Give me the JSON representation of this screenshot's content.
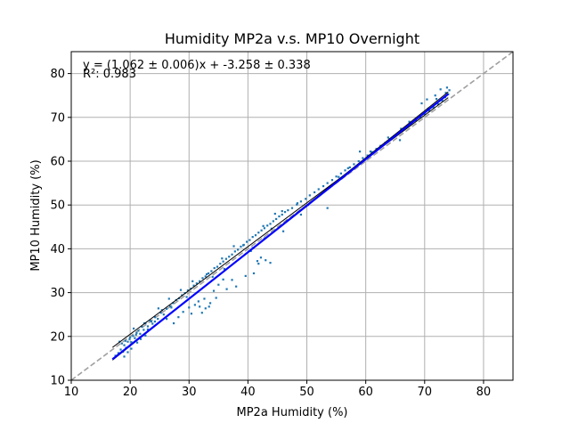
{
  "chart_data": {
    "type": "scatter",
    "title": "Humidity MP2a v.s. MP10 Overnight",
    "xlabel": "MP2a Humidity (%)",
    "ylabel": "MP10 Humidity (%)",
    "xlim": [
      10,
      85
    ],
    "ylim": [
      10,
      85
    ],
    "xticks": [
      10,
      20,
      30,
      40,
      50,
      60,
      70,
      80
    ],
    "yticks": [
      10,
      20,
      30,
      40,
      50,
      60,
      70,
      80
    ],
    "grid": true,
    "annotation": {
      "equation": "y = (1.062 ± 0.006)x + -3.258 ± 0.338",
      "r2": "R²: 0.983"
    },
    "fit": {
      "slope": 1.062,
      "intercept": -3.258,
      "x_range": [
        17,
        74
      ],
      "color": "#0000ff"
    },
    "fit_bounds": {
      "upper_at_x17": 17.5,
      "upper_at_x74": 74.5,
      "lower_at_x17": 14.6,
      "lower_at_x74": 75.8,
      "color": "#000000"
    },
    "identity_line": {
      "x": [
        10,
        85
      ],
      "color": "#a0a0a0",
      "style": "dashed"
    },
    "scatter_color": "#1f77b4",
    "points": [
      [
        17.5,
        15.6
      ],
      [
        18.0,
        16.2
      ],
      [
        18.4,
        17.0
      ],
      [
        18.8,
        16.5
      ],
      [
        19.0,
        18.0
      ],
      [
        19.3,
        17.4
      ],
      [
        19.6,
        18.8
      ],
      [
        19.9,
        19.4
      ],
      [
        20.2,
        18.7
      ],
      [
        20.5,
        20.1
      ],
      [
        20.8,
        19.6
      ],
      [
        21.1,
        20.8
      ],
      [
        21.4,
        21.3
      ],
      [
        21.7,
        20.6
      ],
      [
        22.0,
        22.2
      ],
      [
        22.3,
        21.5
      ],
      [
        22.6,
        23.0
      ],
      [
        23.0,
        22.3
      ],
      [
        23.4,
        23.6
      ],
      [
        23.8,
        22.9
      ],
      [
        24.2,
        24.4
      ],
      [
        24.7,
        24.0
      ],
      [
        25.2,
        25.4
      ],
      [
        25.7,
        25.0
      ],
      [
        26.2,
        26.3
      ],
      [
        26.8,
        26.9
      ],
      [
        27.3,
        27.6
      ],
      [
        27.8,
        28.3
      ],
      [
        28.3,
        28.7
      ],
      [
        28.8,
        29.4
      ],
      [
        29.3,
        29.9
      ],
      [
        29.8,
        30.5
      ],
      [
        30.3,
        30.9
      ],
      [
        30.8,
        31.6
      ],
      [
        31.3,
        32.1
      ],
      [
        31.8,
        32.6
      ],
      [
        32.3,
        33.3
      ],
      [
        32.8,
        33.7
      ],
      [
        33.3,
        34.4
      ],
      [
        33.8,
        34.9
      ],
      [
        34.3,
        35.6
      ],
      [
        34.8,
        35.9
      ],
      [
        35.3,
        36.6
      ],
      [
        35.8,
        37.1
      ],
      [
        36.3,
        37.7
      ],
      [
        36.8,
        38.2
      ],
      [
        37.3,
        38.7
      ],
      [
        37.8,
        39.4
      ],
      [
        38.3,
        39.8
      ],
      [
        38.8,
        40.5
      ],
      [
        39.3,
        40.9
      ],
      [
        39.8,
        41.6
      ],
      [
        40.3,
        42.0
      ],
      [
        40.8,
        42.7
      ],
      [
        41.3,
        43.1
      ],
      [
        41.8,
        43.7
      ],
      [
        42.3,
        44.2
      ],
      [
        42.8,
        44.7
      ],
      [
        43.3,
        45.3
      ],
      [
        43.8,
        45.7
      ],
      [
        44.3,
        46.3
      ],
      [
        44.8,
        46.8
      ],
      [
        45.3,
        47.4
      ],
      [
        45.8,
        47.8
      ],
      [
        46.3,
        48.4
      ],
      [
        46.8,
        48.8
      ],
      [
        47.5,
        49.3
      ],
      [
        48.3,
        50.1
      ],
      [
        49.0,
        50.8
      ],
      [
        49.8,
        51.4
      ],
      [
        50.5,
        52.2
      ],
      [
        51.3,
        52.9
      ],
      [
        52.0,
        53.6
      ],
      [
        52.8,
        54.3
      ],
      [
        53.5,
        55.0
      ],
      [
        54.3,
        55.7
      ],
      [
        55.0,
        56.5
      ],
      [
        55.8,
        57.2
      ],
      [
        56.5,
        57.9
      ],
      [
        57.3,
        58.6
      ],
      [
        58.0,
        59.3
      ],
      [
        58.8,
        60.0
      ],
      [
        59.5,
        60.7
      ],
      [
        60.3,
        61.3
      ],
      [
        61.0,
        62.1
      ],
      [
        61.8,
        62.8
      ],
      [
        62.5,
        63.5
      ],
      [
        63.3,
        64.2
      ],
      [
        64.0,
        65.0
      ],
      [
        64.8,
        65.7
      ],
      [
        65.5,
        66.4
      ],
      [
        66.3,
        67.1
      ],
      [
        67.0,
        67.9
      ],
      [
        67.8,
        68.6
      ],
      [
        68.5,
        69.3
      ],
      [
        69.3,
        70.0
      ],
      [
        70.0,
        70.8
      ],
      [
        70.8,
        71.5
      ],
      [
        71.5,
        72.3
      ],
      [
        72.3,
        73.0
      ],
      [
        73.0,
        73.8
      ],
      [
        73.5,
        74.6
      ],
      [
        74.0,
        75.3
      ],
      [
        74.2,
        76.2
      ],
      [
        73.8,
        76.8
      ],
      [
        72.7,
        76.4
      ],
      [
        71.8,
        75.0
      ],
      [
        70.4,
        74.1
      ],
      [
        69.5,
        73.2
      ],
      [
        66.0,
        67.4
      ],
      [
        65.8,
        64.8
      ],
      [
        59.0,
        62.2
      ],
      [
        53.5,
        49.3
      ],
      [
        49.0,
        47.8
      ],
      [
        46.0,
        44.0
      ],
      [
        43.0,
        37.4
      ],
      [
        43.8,
        36.8
      ],
      [
        42.2,
        38.0
      ],
      [
        41.6,
        37.2
      ],
      [
        41.0,
        34.4
      ],
      [
        40.5,
        39.5
      ],
      [
        42.6,
        45.2
      ],
      [
        44.6,
        48.0
      ],
      [
        45.8,
        48.6
      ],
      [
        37.3,
        32.9
      ],
      [
        35.8,
        33.0
      ],
      [
        35.0,
        31.8
      ],
      [
        34.2,
        30.4
      ],
      [
        33.6,
        27.6
      ],
      [
        32.8,
        26.4
      ],
      [
        32.2,
        25.4
      ],
      [
        31.8,
        26.8
      ],
      [
        31.0,
        27.2
      ],
      [
        30.4,
        25.2
      ],
      [
        29.0,
        25.6
      ],
      [
        28.2,
        24.4
      ],
      [
        27.4,
        23.0
      ],
      [
        26.2,
        24.0
      ],
      [
        25.4,
        26.0
      ],
      [
        24.2,
        23.4
      ],
      [
        23.0,
        21.6
      ],
      [
        22.6,
        20.2
      ],
      [
        21.8,
        19.4
      ],
      [
        21.2,
        18.6
      ],
      [
        20.2,
        17.2
      ],
      [
        19.6,
        16.4
      ],
      [
        19.0,
        15.4
      ],
      [
        18.6,
        18.4
      ],
      [
        20.6,
        21.8
      ],
      [
        22.4,
        23.0
      ],
      [
        24.8,
        26.4
      ],
      [
        26.6,
        28.6
      ],
      [
        28.6,
        30.6
      ],
      [
        30.6,
        32.6
      ],
      [
        33.0,
        34.2
      ],
      [
        35.6,
        37.8
      ],
      [
        37.6,
        40.6
      ],
      [
        39.2,
        40.8
      ],
      [
        40.8,
        40.2
      ],
      [
        48.4,
        50.4
      ],
      [
        55.4,
        56.4
      ],
      [
        57.0,
        58.4
      ],
      [
        60.8,
        62.2
      ],
      [
        63.8,
        65.4
      ],
      [
        67.4,
        69.0
      ],
      [
        70.6,
        72.0
      ],
      [
        72.0,
        74.2
      ],
      [
        73.6,
        75.6
      ],
      [
        30.0,
        26.6
      ],
      [
        31.6,
        28.0
      ],
      [
        32.6,
        28.6
      ],
      [
        33.4,
        26.8
      ],
      [
        34.6,
        28.8
      ],
      [
        36.4,
        30.8
      ],
      [
        38.0,
        31.4
      ],
      [
        39.6,
        33.8
      ],
      [
        41.8,
        36.6
      ],
      [
        36.0,
        35.4
      ],
      [
        34.0,
        33.6
      ],
      [
        29.6,
        29.0
      ],
      [
        27.0,
        26.6
      ],
      [
        23.6,
        23.4
      ],
      [
        21.0,
        20.4
      ],
      [
        20.0,
        19.8
      ],
      [
        19.2,
        19.0
      ],
      [
        18.2,
        18.8
      ],
      [
        44.0,
        44.6
      ],
      [
        42.8,
        42.4
      ],
      [
        46.6,
        46.4
      ],
      [
        50.2,
        50.0
      ]
    ]
  }
}
